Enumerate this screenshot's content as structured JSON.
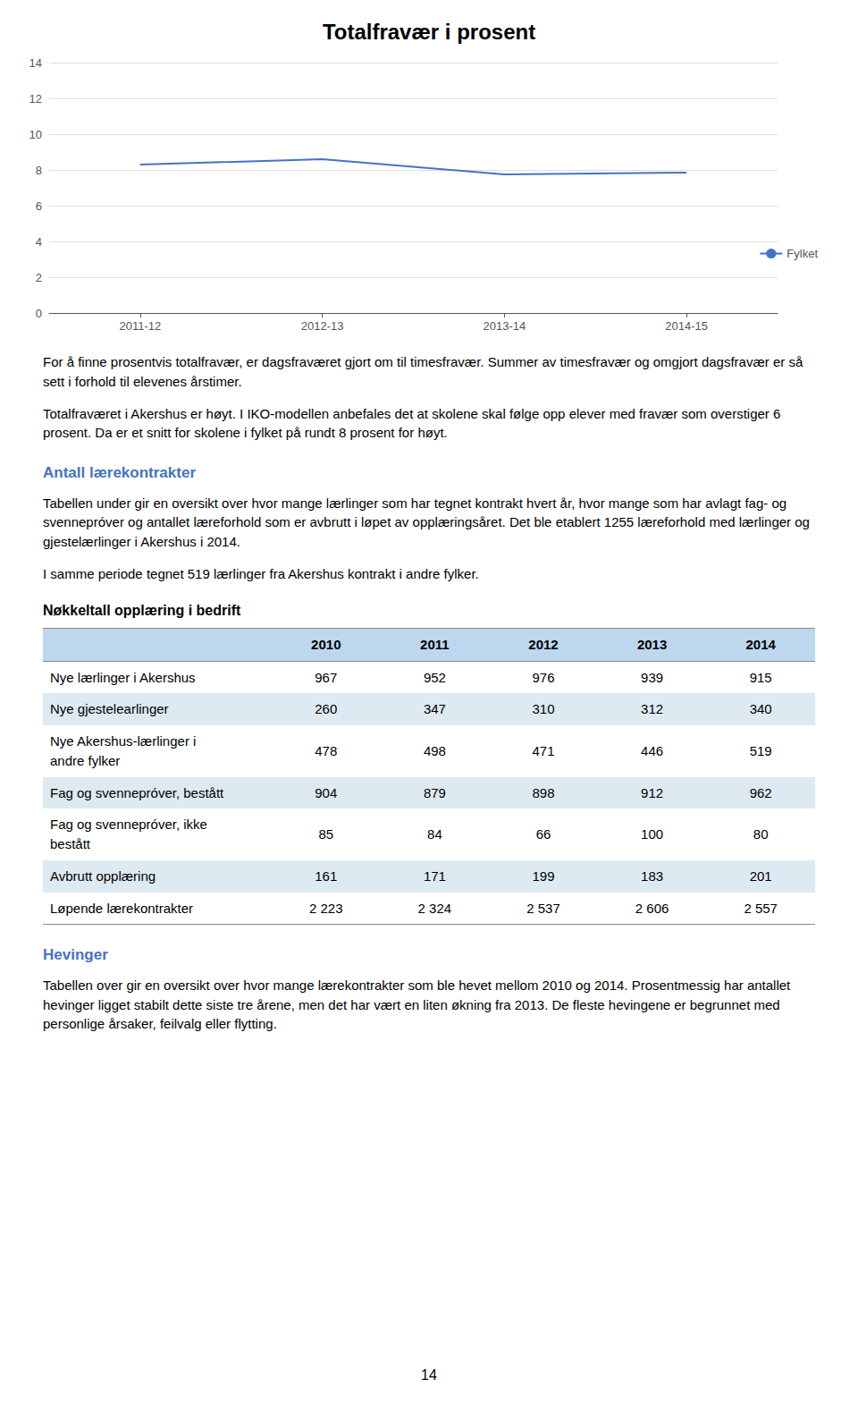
{
  "chart_data": {
    "type": "line",
    "title": "Totalfravær i prosent",
    "categories": [
      "2011-12",
      "2012-13",
      "2013-14",
      "2014-15"
    ],
    "series": [
      {
        "name": "Fylket",
        "color": "#4472C4",
        "values": [
          8.3,
          8.6,
          7.75,
          7.85
        ]
      }
    ],
    "ylim": [
      0,
      14
    ],
    "yticks": [
      0,
      2,
      4,
      6,
      8,
      10,
      12,
      14
    ],
    "grid": true,
    "legend": "lower right",
    "annotations": [
      {
        "text": "For å finne prosentvis totalfravær, er dagsfraværet gjort om til timesfravær. Summer av timesfravær og omgjort dagsfravær er så sett i forhold til elevenes årstimer."
      },
      {
        "text": "Totalfraværet i Akershus er høyt. I IKO-modellen anbefales det at skolene skal følge opp elever med fravær som overstiger 6 prosent. Da er et snitt for skolene i fylket på rundt 8 prosent for høyt."
      },
      {
        "heading": "Antall lærekontrakter"
      },
      {
        "text": "Tabellen under gir en oversikt over hvor mange lærlinger som har tegnet kontrakt hvert år, hvor mange som har avlagt fag- og svennepróver og antallet læreforhold som er avbrutt i løpet av opplæringsåret. Det ble etablert 1255 læreforhold med lærlinger og gjestelærlinger i Akershus i 2014."
      },
      {
        "text": "I samme periode tegnet 519 lærlinger fra Akershus kontrakt i andre fylker."
      },
      {
        "table": {
          "title": "Nøkkeltall opplæring i bedrift",
          "columns": [
            null,
            "2010",
            "2011",
            "2012",
            "2013",
            "2014"
          ],
          "rows": [
            [
              "Nye lærlinger i Akershus",
              "967",
              "952",
              "976",
              "939",
              "915"
            ],
            [
              "Nye gjestelearlinger",
              "260",
              "347",
              "310",
              "312",
              "340"
            ],
            [
              "Nye Akershus-lærlinger i\nandre fylker",
              "478",
              "498",
              "471",
              "446",
              "519"
            ],
            [
              "Fag og svennepróver, bestått",
              "904",
              "879",
              "898",
              "912",
              "962"
            ],
            [
              "Fag og svennepróver, ikke\nbestått",
              "85",
              "84",
              "66",
              "100",
              "80"
            ],
            [
              "Avbrutt opplæring",
              "161",
              "171",
              "199",
              "183",
              "201"
            ],
            [
              "Løpende lærekontrakter",
              "2 223",
              "2 324",
              "2 537",
              "2 606",
              "2 557"
            ]
          ]
        }
      },
      {
        "heading": "Hevinger"
      },
      {
        "text": "Tabellen over gir en oversikt over hvor mange lærekontrakter som ble hevet mellom 2010 og 2014. Prosentmessig har antallet hevinger ligget stabilt dette siste tre årene, men det har vært en liten økning fra 2013. De fleste hevingene er begrunnet med personlige årsaker, feilvalg eller flytting."
      }
    ],
    "footer": "14"
  }
}
